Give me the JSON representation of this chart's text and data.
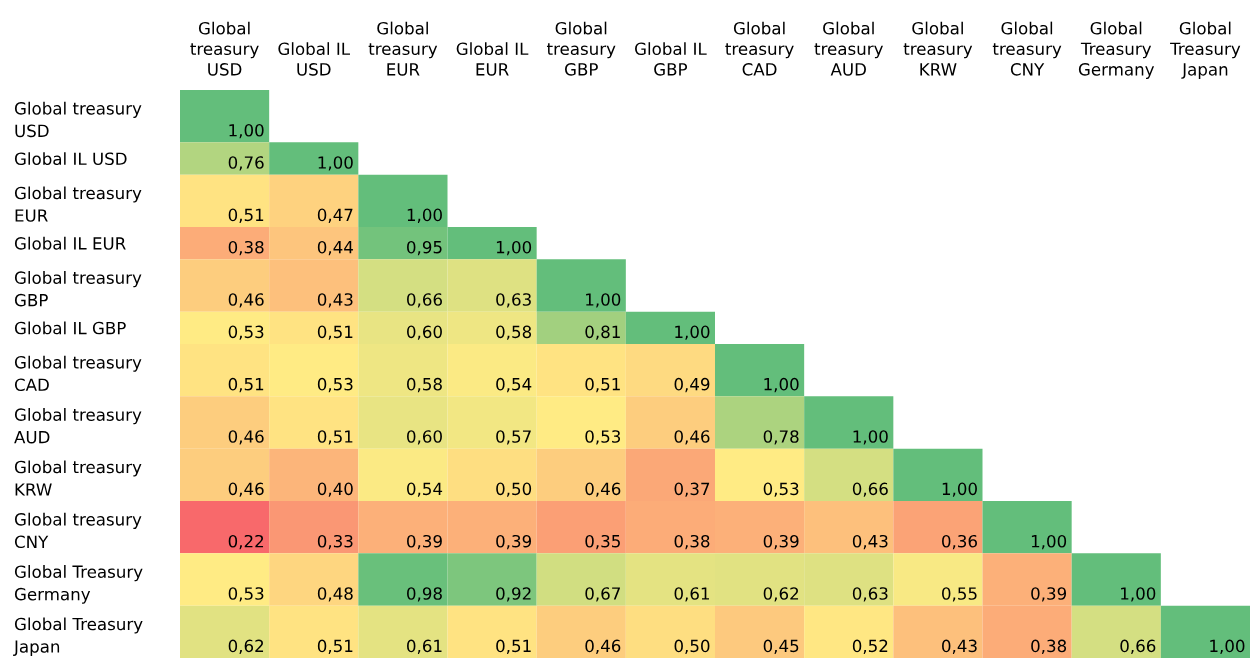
{
  "chart_data": {
    "type": "heatmap",
    "categories": [
      "Global treasury USD",
      "Global IL USD",
      "Global treasury EUR",
      "Global IL EUR",
      "Global treasury GBP",
      "Global IL GBP",
      "Global treasury CAD",
      "Global treasury AUD",
      "Global treasury KRW",
      "Global treasury CNY",
      "Global Treasury Germany",
      "Global Treasury Japan"
    ],
    "y_categories": [
      "Global treasury USD",
      "Global IL USD",
      "Global treasury EUR",
      "Global IL EUR",
      "Global treasury GBP",
      "Global IL GBP",
      "Global treasury CAD",
      "Global treasury AUD",
      "Global treasury KRW",
      "Global treasury CNY",
      "Global Treasury Germany",
      "Global Treasury Japan"
    ],
    "cells": [
      [
        1.0,
        null,
        null,
        null,
        null,
        null,
        null,
        null,
        null,
        null,
        null,
        null
      ],
      [
        0.76,
        1.0,
        null,
        null,
        null,
        null,
        null,
        null,
        null,
        null,
        null,
        null
      ],
      [
        0.51,
        0.47,
        1.0,
        null,
        null,
        null,
        null,
        null,
        null,
        null,
        null,
        null
      ],
      [
        0.38,
        0.44,
        0.95,
        1.0,
        null,
        null,
        null,
        null,
        null,
        null,
        null,
        null
      ],
      [
        0.46,
        0.43,
        0.66,
        0.63,
        1.0,
        null,
        null,
        null,
        null,
        null,
        null,
        null
      ],
      [
        0.53,
        0.51,
        0.6,
        0.58,
        0.81,
        1.0,
        null,
        null,
        null,
        null,
        null,
        null
      ],
      [
        0.51,
        0.53,
        0.58,
        0.54,
        0.51,
        0.49,
        1.0,
        null,
        null,
        null,
        null,
        null
      ],
      [
        0.46,
        0.51,
        0.6,
        0.57,
        0.53,
        0.46,
        0.78,
        1.0,
        null,
        null,
        null,
        null
      ],
      [
        0.46,
        0.4,
        0.54,
        0.5,
        0.46,
        0.37,
        0.53,
        0.66,
        1.0,
        null,
        null,
        null
      ],
      [
        0.22,
        0.33,
        0.39,
        0.39,
        0.35,
        0.38,
        0.39,
        0.43,
        0.36,
        1.0,
        null,
        null
      ],
      [
        0.53,
        0.48,
        0.98,
        0.92,
        0.67,
        0.61,
        0.62,
        0.63,
        0.55,
        0.39,
        1.0,
        null
      ],
      [
        0.62,
        0.51,
        0.61,
        0.51,
        0.46,
        0.5,
        0.45,
        0.52,
        0.43,
        0.38,
        0.66,
        1.0
      ]
    ],
    "cell_labels": [
      [
        "1,00",
        null,
        null,
        null,
        null,
        null,
        null,
        null,
        null,
        null,
        null,
        null
      ],
      [
        "0,76",
        "1,00",
        null,
        null,
        null,
        null,
        null,
        null,
        null,
        null,
        null,
        null
      ],
      [
        "0,51",
        "0,47",
        "1,00",
        null,
        null,
        null,
        null,
        null,
        null,
        null,
        null,
        null
      ],
      [
        "0,38",
        "0,44",
        "0,95",
        "1,00",
        null,
        null,
        null,
        null,
        null,
        null,
        null,
        null
      ],
      [
        "0,46",
        "0,43",
        "0,66",
        "0,63",
        "1,00",
        null,
        null,
        null,
        null,
        null,
        null,
        null
      ],
      [
        "0,53",
        "0,51",
        "0,60",
        "0,58",
        "0,81",
        "1,00",
        null,
        null,
        null,
        null,
        null,
        null
      ],
      [
        "0,51",
        "0,53",
        "0,58",
        "0,54",
        "0,51",
        "0,49",
        "1,00",
        null,
        null,
        null,
        null,
        null
      ],
      [
        "0,46",
        "0,51",
        "0,60",
        "0,57",
        "0,53",
        "0,46",
        "0,78",
        "1,00",
        null,
        null,
        null,
        null
      ],
      [
        "0,46",
        "0,40",
        "0,54",
        "0,50",
        "0,46",
        "0,37",
        "0,53",
        "0,66",
        "1,00",
        null,
        null,
        null
      ],
      [
        "0,22",
        "0,33",
        "0,39",
        "0,39",
        "0,35",
        "0,38",
        "0,39",
        "0,43",
        "0,36",
        "1,00",
        null,
        null
      ],
      [
        "0,53",
        "0,48",
        "0,98",
        "0,92",
        "0,67",
        "0,61",
        "0,62",
        "0,63",
        "0,55",
        "0,39",
        "1,00",
        null
      ],
      [
        "0,62",
        "0,51",
        "0,61",
        "0,51",
        "0,46",
        "0,50",
        "0,45",
        "0,52",
        "0,43",
        "0,38",
        "0,66",
        "1,00"
      ]
    ]
  }
}
